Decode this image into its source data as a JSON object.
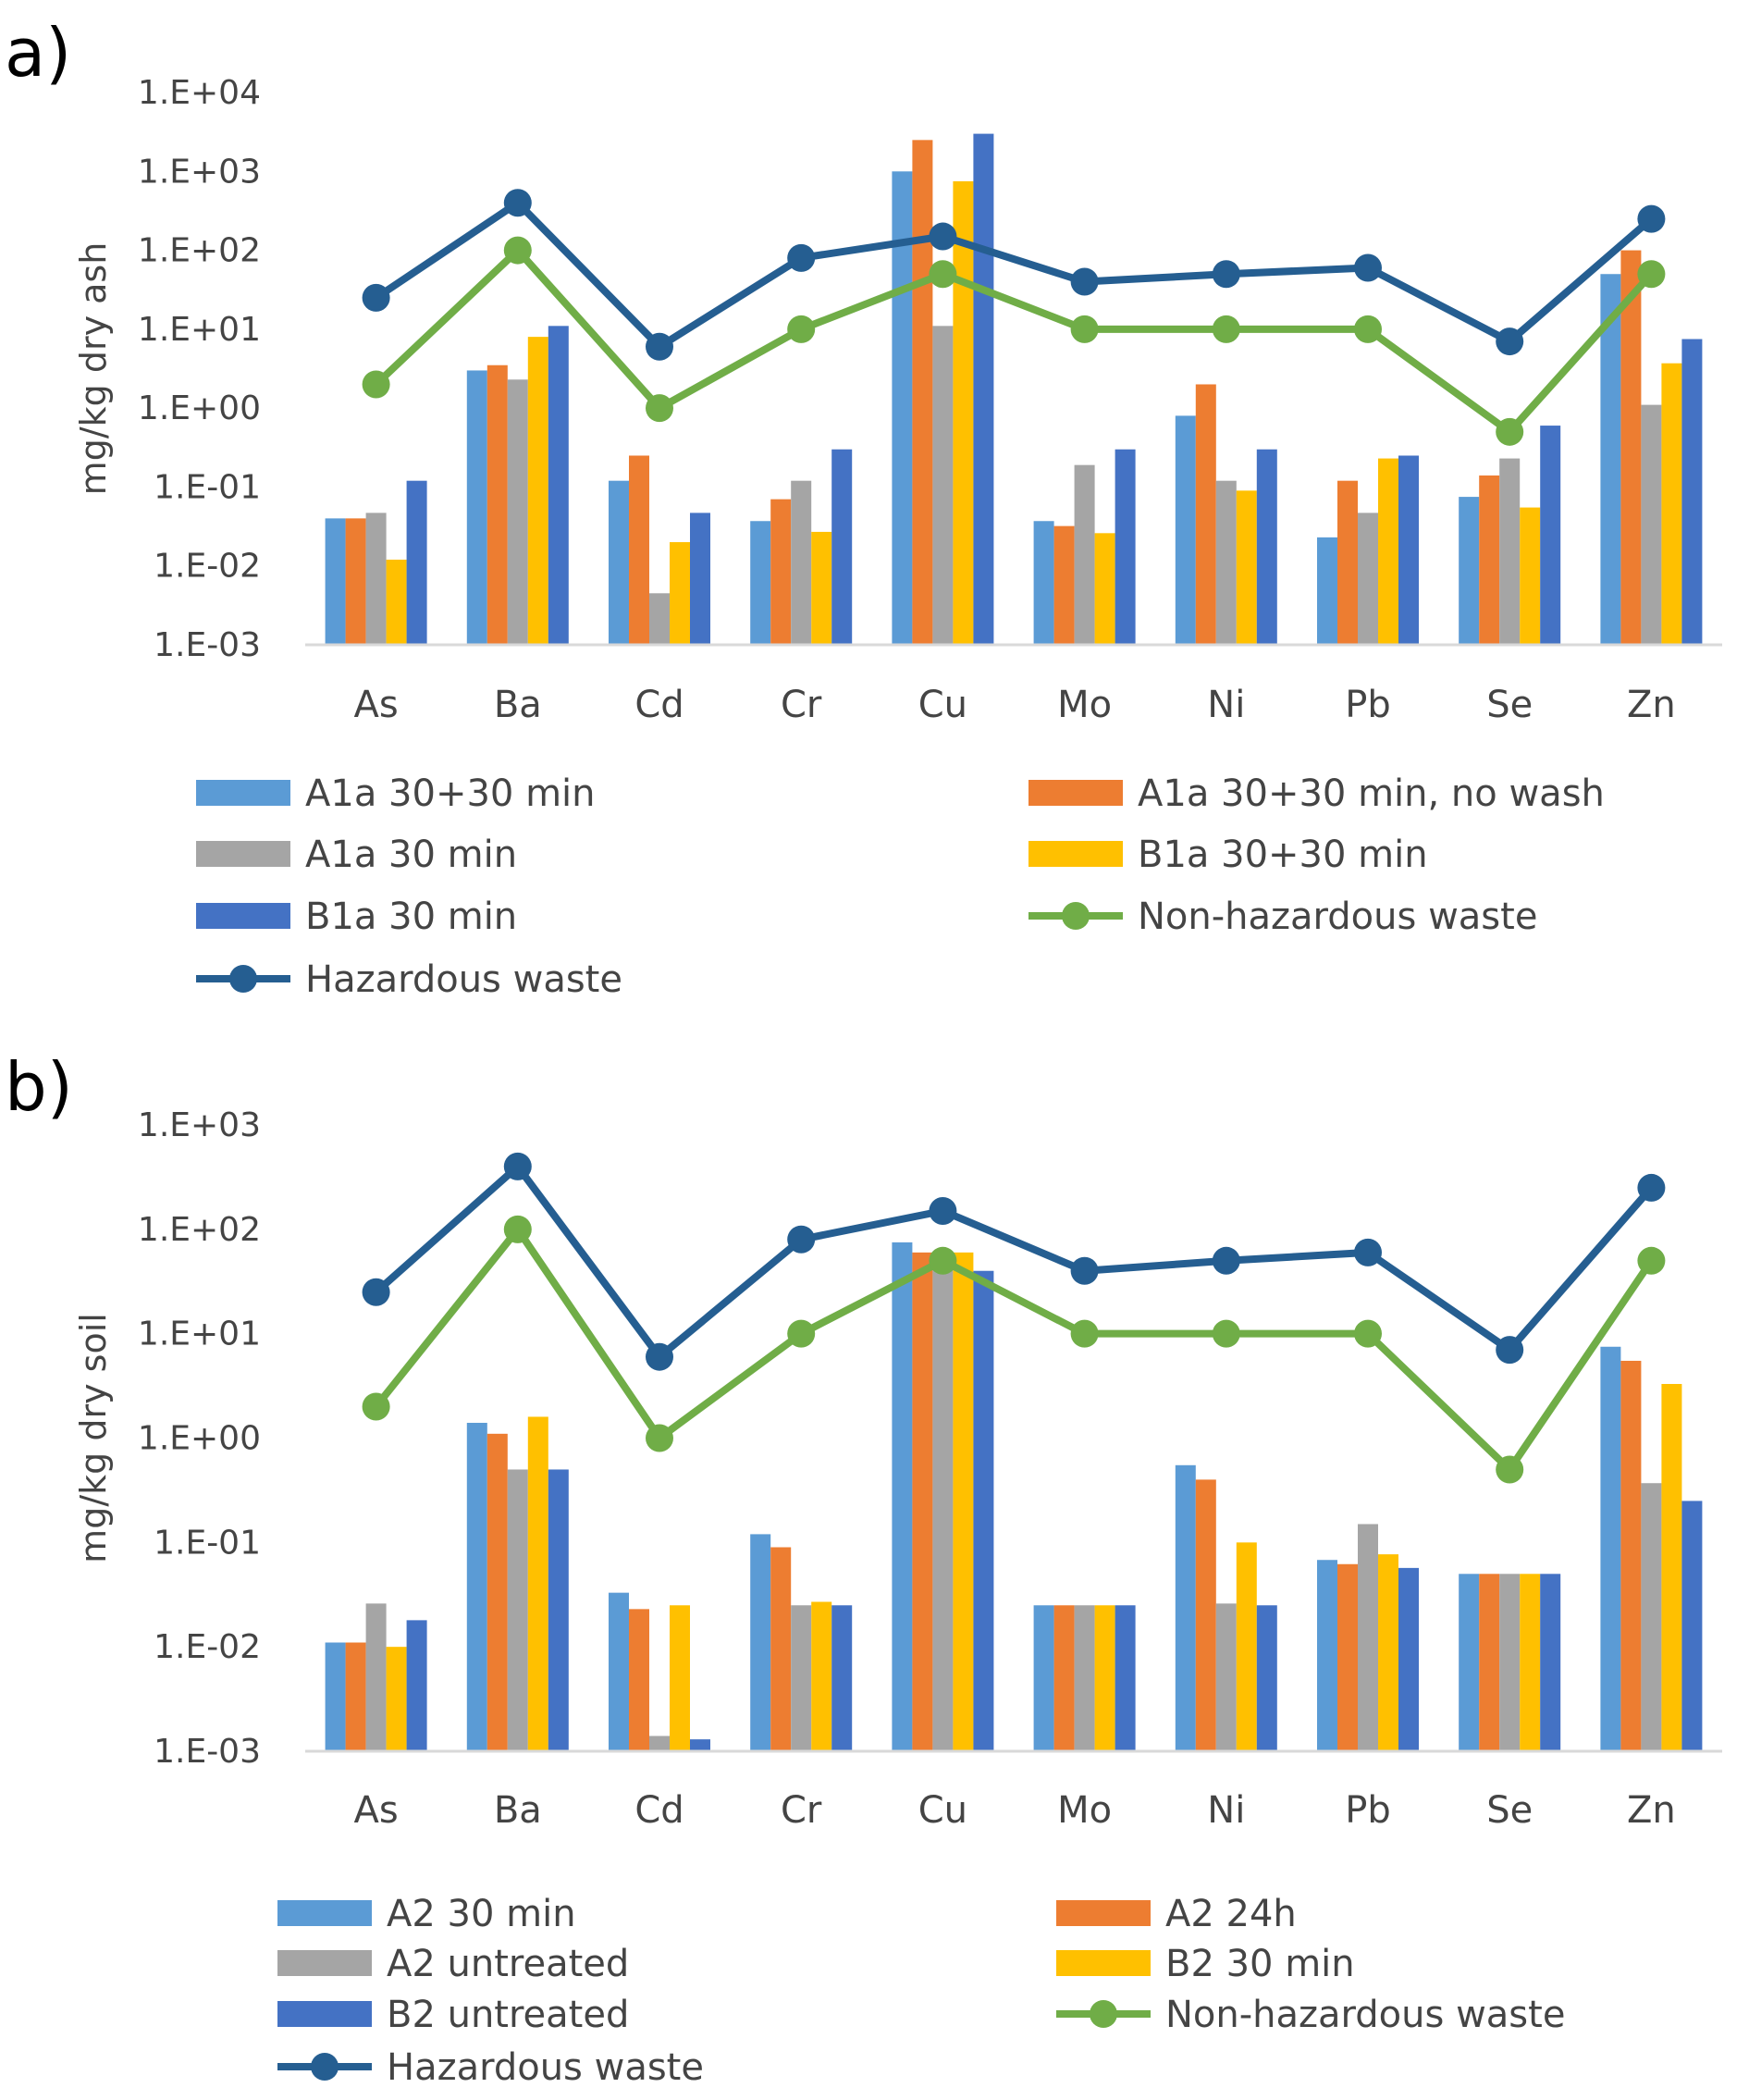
{
  "figure": {
    "colors": {
      "blue_light": "#5B9BD5",
      "orange": "#ED7D31",
      "gray": "#A5A5A5",
      "gold": "#FFC000",
      "blue_dark": "#4472C4",
      "green": "#70AD47",
      "navy": "#255E91"
    }
  },
  "chart_data": [
    {
      "panel_label": "a)",
      "type": "bar",
      "scale": "log",
      "ylabel": "mg/kg dry ash",
      "xlabel": "",
      "ylim": [
        0.001,
        10000
      ],
      "yticks": [
        "1.E-03",
        "1.E-02",
        "1.E-01",
        "1.E+00",
        "1.E+01",
        "1.E+02",
        "1.E+03",
        "1.E+04"
      ],
      "categories": [
        "As",
        "Ba",
        "Cd",
        "Cr",
        "Cu",
        "Mo",
        "Ni",
        "Pb",
        "Se",
        "Zn"
      ],
      "grid": false,
      "legend_position": "bottom",
      "series": [
        {
          "name": "A1a 30+30 min",
          "kind": "bar",
          "color": "#5B9BD5",
          "values": [
            0.04,
            3.0,
            0.12,
            0.037,
            1000,
            0.037,
            0.8,
            0.023,
            0.075,
            50
          ]
        },
        {
          "name": "A1a 30+30 min, no wash",
          "kind": "bar",
          "color": "#ED7D31",
          "values": [
            0.04,
            3.5,
            0.25,
            0.07,
            2500,
            0.032,
            2.0,
            0.12,
            0.14,
            100
          ]
        },
        {
          "name": "A1a 30 min",
          "kind": "bar",
          "color": "#A5A5A5",
          "values": [
            0.047,
            2.3,
            0.0045,
            0.12,
            11,
            0.19,
            0.12,
            0.047,
            0.23,
            1.1
          ]
        },
        {
          "name": "B1a 30+30 min",
          "kind": "bar",
          "color": "#FFC000",
          "values": [
            0.012,
            8.0,
            0.02,
            0.027,
            750,
            0.026,
            0.09,
            0.23,
            0.055,
            3.7
          ]
        },
        {
          "name": "B1a 30 min",
          "kind": "bar",
          "color": "#4472C4",
          "values": [
            0.12,
            11,
            0.047,
            0.3,
            3000,
            0.3,
            0.3,
            0.25,
            0.6,
            7.5
          ]
        },
        {
          "name": "Non-hazardous waste",
          "kind": "line",
          "color": "#70AD47",
          "values": [
            2,
            100,
            1,
            10,
            50,
            10,
            10,
            10,
            0.5,
            50
          ]
        },
        {
          "name": "Hazardous waste",
          "kind": "line",
          "color": "#255E91",
          "values": [
            25,
            400,
            6,
            80,
            150,
            40,
            50,
            60,
            7,
            250
          ]
        }
      ]
    },
    {
      "panel_label": "b)",
      "type": "bar",
      "scale": "log",
      "ylabel": "mg/kg dry soil",
      "xlabel": "",
      "ylim": [
        0.001,
        1000
      ],
      "yticks": [
        "1.E-03",
        "1.E-02",
        "1.E-01",
        "1.E+00",
        "1.E+01",
        "1.E+02",
        "1.E+03"
      ],
      "categories": [
        "As",
        "Ba",
        "Cd",
        "Cr",
        "Cu",
        "Mo",
        "Ni",
        "Pb",
        "Se",
        "Zn"
      ],
      "grid": false,
      "legend_position": "bottom",
      "series": [
        {
          "name": "A2 30 min",
          "kind": "bar",
          "color": "#5B9BD5",
          "values": [
            0.011,
            1.4,
            0.033,
            0.12,
            75,
            0.025,
            0.55,
            0.068,
            0.05,
            7.5
          ]
        },
        {
          "name": "A2 24h",
          "kind": "bar",
          "color": "#ED7D31",
          "values": [
            0.011,
            1.1,
            0.023,
            0.09,
            60,
            0.025,
            0.4,
            0.062,
            0.05,
            5.5
          ]
        },
        {
          "name": "A2 untreated",
          "kind": "bar",
          "color": "#A5A5A5",
          "values": [
            0.026,
            0.5,
            0.0014,
            0.025,
            50,
            0.025,
            0.026,
            0.15,
            0.05,
            0.37
          ]
        },
        {
          "name": "B2 30 min",
          "kind": "bar",
          "color": "#FFC000",
          "values": [
            0.01,
            1.6,
            0.025,
            0.027,
            60,
            0.025,
            0.1,
            0.077,
            0.05,
            3.3
          ]
        },
        {
          "name": "B2 untreated",
          "kind": "bar",
          "color": "#4472C4",
          "values": [
            0.018,
            0.5,
            0.0013,
            0.025,
            40,
            0.025,
            0.025,
            0.057,
            0.05,
            0.25
          ]
        },
        {
          "name": "Non-hazardous waste",
          "kind": "line",
          "color": "#70AD47",
          "values": [
            2,
            100,
            1,
            10,
            50,
            10,
            10,
            10,
            0.5,
            50
          ]
        },
        {
          "name": "Hazardous waste",
          "kind": "line",
          "color": "#255E91",
          "values": [
            25,
            400,
            6,
            80,
            150,
            40,
            50,
            60,
            7,
            250
          ]
        }
      ]
    }
  ]
}
